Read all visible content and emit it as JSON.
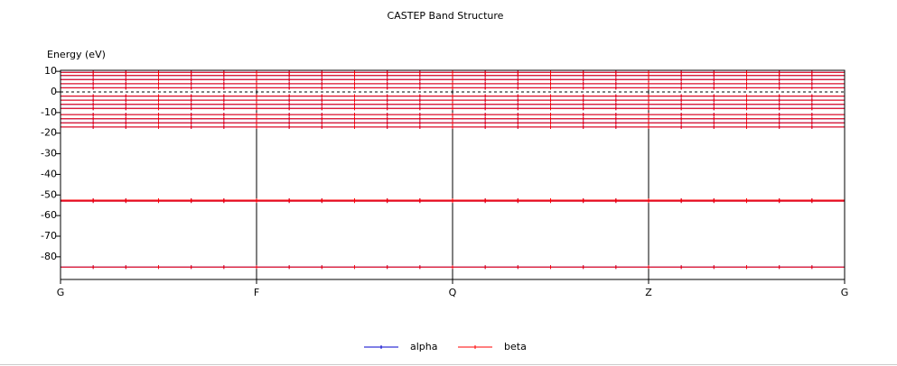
{
  "chart_data": {
    "type": "band-structure",
    "title": "CASTEP Band Structure",
    "y_label": "Energy (eV)",
    "categories": [
      "G",
      "F",
      "Q",
      "Z",
      "G"
    ],
    "ylim": [
      -91,
      10.5
    ],
    "yticks": [
      10,
      0,
      -10,
      -20,
      -30,
      -40,
      -50,
      -60,
      -70,
      -80
    ],
    "fermi_level": 0,
    "series": [
      {
        "name": "alpha",
        "color": "#0000cc",
        "bands": [
          [
            -85,
            -85,
            -85,
            -85,
            -85
          ],
          [
            -53,
            -53,
            -53,
            -53,
            -53
          ],
          [
            -52.5,
            -52.5,
            -52.5,
            -52.5,
            -52.5
          ],
          [
            -17,
            -17,
            -17,
            -17,
            -17
          ],
          [
            -15,
            -15,
            -15,
            -15,
            -15
          ],
          [
            -13,
            -13,
            -13,
            -13,
            -13
          ],
          [
            -11,
            -11,
            -11,
            -11,
            -11
          ],
          [
            -8,
            -8,
            -8,
            -8,
            -8
          ],
          [
            -6,
            -6,
            -6,
            -6,
            -6
          ],
          [
            -4,
            -4,
            -4,
            -4,
            -4
          ],
          [
            -2,
            -2,
            -2,
            -2,
            -2
          ],
          [
            2,
            2,
            2,
            2,
            2
          ],
          [
            4,
            4,
            4,
            4,
            4
          ],
          [
            6,
            6,
            6,
            6,
            6
          ],
          [
            8,
            8,
            8,
            8,
            8
          ],
          [
            9.5,
            9.5,
            9.5,
            9.5,
            9.5
          ]
        ]
      },
      {
        "name": "beta",
        "color": "#ff0000",
        "bands": [
          [
            -85,
            -85,
            -85,
            -85,
            -85
          ],
          [
            -53,
            -53,
            -53,
            -53,
            -53
          ],
          [
            -52.5,
            -52.5,
            -52.5,
            -52.5,
            -52.5
          ],
          [
            -17,
            -17,
            -17,
            -17,
            -17
          ],
          [
            -15,
            -15,
            -15,
            -15,
            -15
          ],
          [
            -13,
            -13,
            -13,
            -13,
            -13
          ],
          [
            -11,
            -11,
            -11,
            -11,
            -11
          ],
          [
            -8,
            -8,
            -8,
            -8,
            -8
          ],
          [
            -6,
            -6,
            -6,
            -6,
            -6
          ],
          [
            -4,
            -4,
            -4,
            -4,
            -4
          ],
          [
            -2,
            -2,
            -2,
            -2,
            -2
          ],
          [
            2,
            2,
            2,
            2,
            2
          ],
          [
            4,
            4,
            4,
            4,
            4
          ],
          [
            6,
            6,
            6,
            6,
            6
          ],
          [
            8,
            8,
            8,
            8,
            8
          ],
          [
            9.5,
            9.5,
            9.5,
            9.5,
            9.5
          ]
        ]
      }
    ]
  }
}
